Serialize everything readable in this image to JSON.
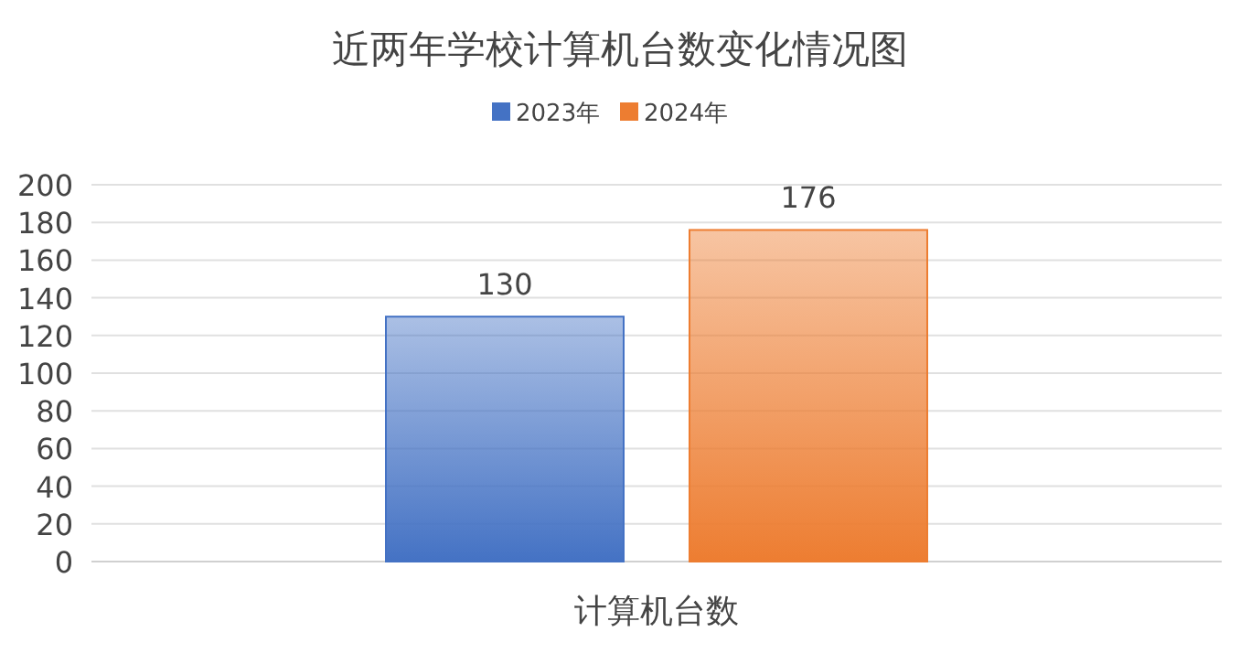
{
  "chart_data": {
    "type": "bar",
    "title": "近两年学校计算机台数变化情况图",
    "categories": [
      "计算机台数"
    ],
    "series": [
      {
        "name": "2023年",
        "color": "#4472c4",
        "values": [
          130
        ]
      },
      {
        "name": "2024年",
        "color": "#ed7d31",
        "values": [
          176
        ]
      }
    ],
    "ylim": [
      0,
      200
    ],
    "yticks": [
      0,
      20,
      40,
      60,
      80,
      100,
      120,
      140,
      160,
      180,
      200
    ],
    "grid": "y",
    "legend": "top",
    "data_labels": true
  }
}
